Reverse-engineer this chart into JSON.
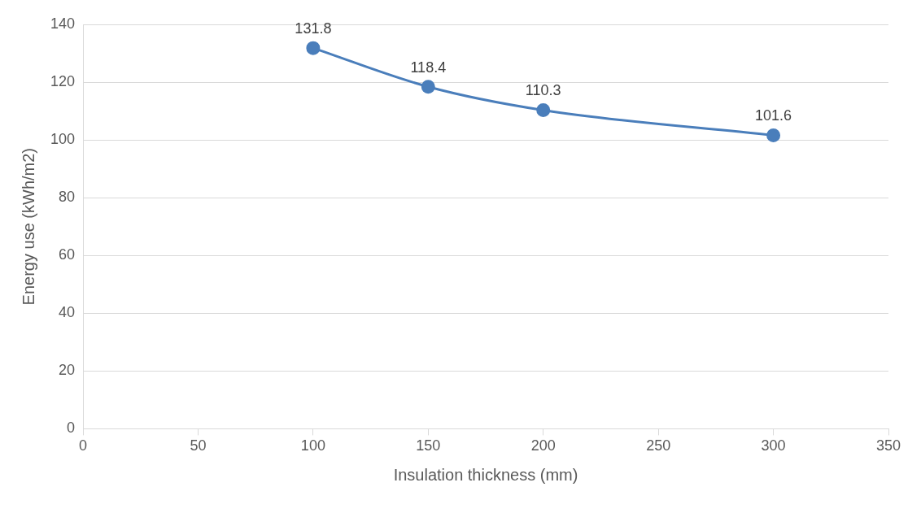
{
  "chart_data": {
    "type": "line",
    "xlabel": "Insulation thickness (mm)",
    "ylabel": "Energy use (kWh/m2)",
    "x": [
      100,
      150,
      200,
      300
    ],
    "series": [
      {
        "color": "#4a7ebb",
        "values": [
          131.8,
          118.4,
          110.3,
          101.6
        ]
      }
    ],
    "xlim": [
      0,
      350
    ],
    "xticks": [
      0,
      50,
      100,
      150,
      200,
      250,
      300,
      350
    ],
    "ylim": [
      0,
      140
    ],
    "yticks": [
      0,
      20,
      40,
      60,
      80,
      100,
      120,
      140
    ],
    "grid": "y",
    "legend": false,
    "marker": "circle",
    "line_style": "solid",
    "data_labels": true
  }
}
